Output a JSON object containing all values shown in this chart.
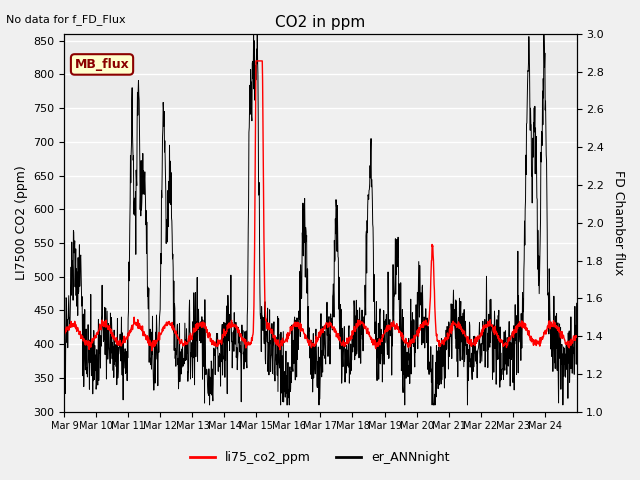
{
  "title": "CO2 in ppm",
  "top_left_text": "No data for f_FD_Flux",
  "ylabel_left": "LI7500 CO2 (ppm)",
  "ylabel_right": "FD Chamber flux",
  "ylim_left": [
    300,
    860
  ],
  "ylim_right": [
    1.0,
    3.0
  ],
  "yticks_left": [
    300,
    350,
    400,
    450,
    500,
    550,
    600,
    650,
    700,
    750,
    800,
    850
  ],
  "yticks_right": [
    1.0,
    1.2,
    1.4,
    1.6,
    1.8,
    2.0,
    2.2,
    2.4,
    2.6,
    2.8,
    3.0
  ],
  "xtick_labels": [
    "Mar 9",
    "Mar 10",
    "Mar 11",
    "Mar 12",
    "Mar 13",
    "Mar 14",
    "Mar 15",
    "Mar 16",
    "Mar 17",
    "Mar 18",
    "Mar 19",
    "Mar 20",
    "Mar 21",
    "Mar 22",
    "Mar 23",
    "Mar 24"
  ],
  "n_days": 16,
  "legend_labels": [
    "li75_co2_ppm",
    "er_ANNnight"
  ],
  "legend_colors": [
    "red",
    "black"
  ],
  "mb_flux_label": "MB_flux",
  "background_strip_color": "#e8e8e8",
  "grid_color": "#ffffff",
  "figure_bg": "#f0f0f0",
  "mb_flux_text_color": "#8b0000",
  "mb_flux_bg": "#ffffcc",
  "mb_flux_edge": "#8b0000"
}
